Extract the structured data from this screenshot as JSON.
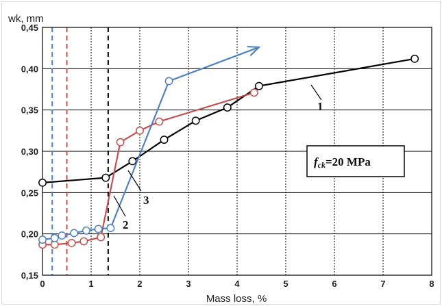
{
  "chart_data": {
    "type": "line",
    "xlabel": "Mass loss, %",
    "ylabel": "wk, mm",
    "xlim": [
      0,
      8
    ],
    "ylim": [
      0.15,
      0.45
    ],
    "x_ticks": [
      0,
      1,
      2,
      3,
      4,
      5,
      6,
      7,
      8
    ],
    "y_ticks": [
      0.15,
      0.2,
      0.25,
      0.3,
      0.35,
      0.4,
      0.45
    ],
    "y_tick_labels": [
      "0,15",
      "0,20",
      "0,25",
      "0,30",
      "0,35",
      "0,40",
      "0,45"
    ],
    "grid": {
      "x": true,
      "y": true,
      "x_style": "dotted",
      "y_style": "solid"
    },
    "series": [
      {
        "name": "1",
        "color": "#000000",
        "x": [
          0,
          1.3,
          1.85,
          2.5,
          3.15,
          3.8,
          4.45,
          7.65
        ],
        "y": [
          0.262,
          0.268,
          0.288,
          0.314,
          0.337,
          0.353,
          0.379,
          0.412
        ],
        "arrow": false
      },
      {
        "name": "2",
        "color": "#c0504d",
        "x": [
          0,
          0.25,
          0.6,
          0.85,
          1.2,
          1.6,
          2.0,
          2.4,
          4.35
        ],
        "y": [
          0.187,
          0.187,
          0.189,
          0.191,
          0.196,
          0.311,
          0.325,
          0.336,
          0.371
        ],
        "arrow": false
      },
      {
        "name": "3",
        "color": "#4f81bd",
        "x": [
          0,
          0.25,
          0.4,
          0.65,
          0.9,
          1.15,
          1.4,
          2.6,
          4.45
        ],
        "y": [
          0.193,
          0.195,
          0.198,
          0.201,
          0.204,
          0.206,
          0.207,
          0.385,
          0.426
        ],
        "arrow": true
      }
    ],
    "vertical_markers": [
      {
        "x": 0.2,
        "color": "#4f81bd",
        "style": "dashed"
      },
      {
        "x": 0.5,
        "color": "#c0504d",
        "style": "dashed"
      },
      {
        "x": 1.35,
        "color": "#000000",
        "style": "dashed"
      }
    ],
    "annotations": {
      "box_label_fck": "f",
      "box_label_sub": "ck",
      "box_label_rest": "=20 MPa",
      "label_1": "1",
      "label_2": "2",
      "label_3": "3"
    }
  }
}
